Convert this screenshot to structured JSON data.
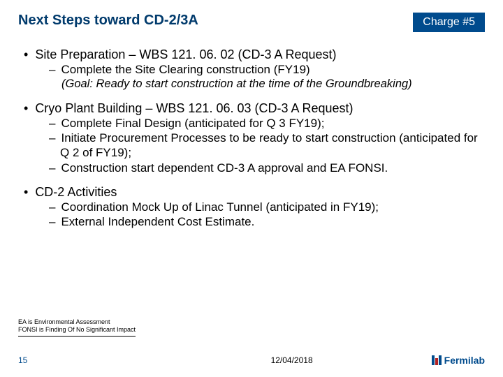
{
  "title": "Next Steps toward CD-2/3A",
  "badge": "Charge #5",
  "sections": [
    {
      "heading": "Site Preparation – WBS 121. 06. 02 (CD-3 A Request)",
      "items": [
        "Complete the Site Clearing construction (FY19)"
      ],
      "note": "(Goal: Ready to start construction at the time of the Groundbreaking)"
    },
    {
      "heading": "Cryo Plant Building – WBS 121. 06. 03 (CD-3 A Request)",
      "items": [
        "Complete Final Design (anticipated for Q 3 FY19);",
        "Initiate Procurement Processes to be ready to start construction (anticipated for Q 2 of FY19);",
        "Construction start dependent CD-3 A approval and EA FONSI."
      ]
    },
    {
      "heading": "CD-2 Activities",
      "items": [
        "Coordination Mock Up of Linac Tunnel (anticipated in FY19);",
        "External Independent Cost Estimate."
      ]
    }
  ],
  "footnotes": [
    "EA is Environmental Assessment",
    "FONSI is Finding Of No Significant Impact"
  ],
  "page_num": "15",
  "date": "12/04/2018",
  "logo_text": "Fermilab",
  "logo_sub": ""
}
